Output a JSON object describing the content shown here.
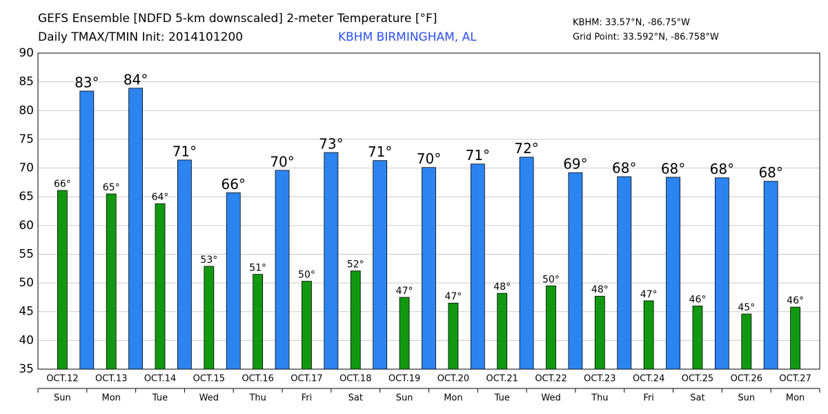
{
  "chart_data": {
    "type": "bar",
    "title": "GEFS Ensemble [NDFD 5-km downscaled] 2-meter Temperature [°F]",
    "subtitle": "Daily TMAX/TMIN Init: 2014101200",
    "location": "KBHM BIRMINGHAM, AL",
    "station": "KBHM: 33.57°N, -86.75°W",
    "grid_point": "Grid Point: 33.592°N, -86.758°W",
    "categories": [
      "OCT.12",
      "OCT.13",
      "OCT.14",
      "OCT.15",
      "OCT.16",
      "OCT.17",
      "OCT.18",
      "OCT.19",
      "OCT.20",
      "OCT.21",
      "OCT.22",
      "OCT.23",
      "OCT.24",
      "OCT.25",
      "OCT.26",
      "OCT.27"
    ],
    "weekdays": [
      "Sun",
      "Mon",
      "Tue",
      "Wed",
      "Thu",
      "Fri",
      "Sat",
      "Sun",
      "Mon",
      "Tue",
      "Wed",
      "Thu",
      "Fri",
      "Sat",
      "Sun",
      "Mon"
    ],
    "series": [
      {
        "color": "#109910",
        "values": [
          66.1,
          65.5,
          63.8,
          52.9,
          51.5,
          50.3,
          52.1,
          47.5,
          46.5,
          48.2,
          49.5,
          47.7,
          46.9,
          46.0,
          44.6,
          45.8
        ],
        "value_labels": [
          "66°",
          "65°",
          "64°",
          "53°",
          "51°",
          "50°",
          "52°",
          "47°",
          "47°",
          "48°",
          "50°",
          "48°",
          "47°",
          "46°",
          "45°",
          "46°"
        ]
      },
      {
        "color": "#2b84f0",
        "values": [
          83.4,
          83.9,
          71.4,
          65.7,
          69.6,
          72.7,
          71.3,
          70.1,
          70.7,
          71.9,
          69.2,
          68.5,
          68.4,
          68.3,
          67.7,
          null
        ],
        "value_labels": [
          "83°",
          "84°",
          "71°",
          "66°",
          "70°",
          "73°",
          "71°",
          "70°",
          "71°",
          "72°",
          "69°",
          "68°",
          "68°",
          "68°",
          "68°",
          null
        ]
      }
    ],
    "ylim": [
      35,
      90
    ],
    "yticks": [
      35,
      40,
      45,
      50,
      55,
      60,
      65,
      70,
      75,
      80,
      85,
      90
    ],
    "grid": true
  }
}
